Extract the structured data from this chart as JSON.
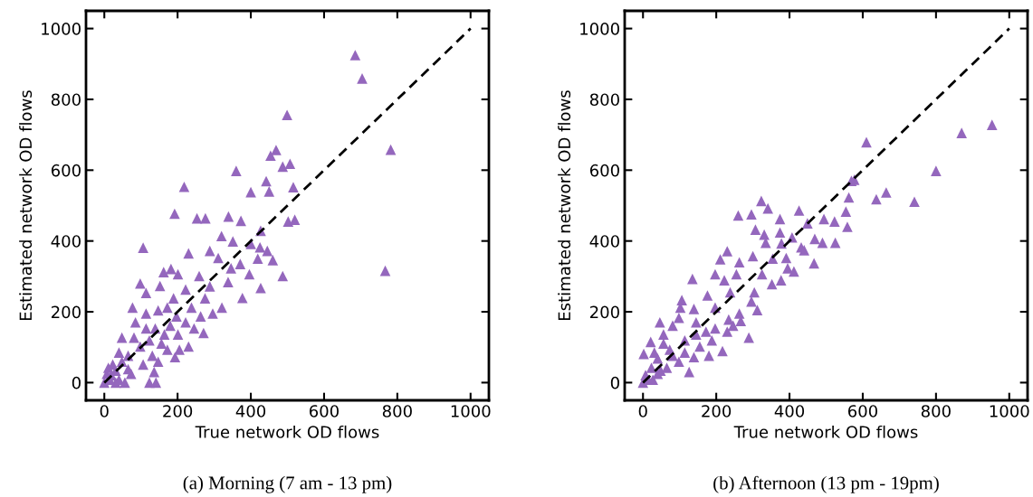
{
  "chart_data": [
    {
      "type": "scatter",
      "xlabel": "True network OD flows",
      "ylabel": "Estimated network OD flows",
      "annotations": [
        "(a) Morning (7 am - 13 pm)"
      ],
      "xlim": [
        -50,
        1050
      ],
      "ylim": [
        -50,
        1050
      ],
      "xticks": [
        0,
        200,
        400,
        600,
        800,
        1000
      ],
      "yticks": [
        0,
        200,
        400,
        600,
        800,
        1000
      ],
      "grid": false,
      "marker": "triangle",
      "series": [
        {
          "color": "#9467bd",
          "x": [
            685,
            704,
            782,
            767,
            499,
            469,
            454,
            507,
            487,
            360,
            218,
            442,
            516,
            400,
            450,
            192,
            253,
            276,
            339,
            373,
            502,
            520,
            427,
            320,
            106,
            351,
            400,
            230,
            288,
            425,
            445,
            460,
            419,
            311,
            371,
            487,
            427,
            396,
            346,
            162,
            182,
            201,
            259,
            98,
            152,
            222,
            288,
            338,
            377,
            321,
            114,
            77,
            189,
            263,
            230,
            193,
            271,
            136,
            141,
            123,
            56,
            31,
            48,
            85,
            114,
            147,
            164,
            197,
            222,
            245,
            172,
            131,
            98,
            65,
            40,
            23,
            7,
            15,
            0,
            31,
            73,
            106,
            147,
            205,
            156,
            48,
            81,
            123,
            238,
            296,
            275,
            172,
            201,
            180,
            114,
            139,
            19,
            40,
            11,
            65
          ],
          "values": [
            925,
            859,
            658,
            316,
            756,
            657,
            641,
            618,
            610,
            598,
            553,
            569,
            552,
            538,
            540,
            477,
            464,
            464,
            469,
            457,
            455,
            460,
            429,
            414,
            381,
            399,
            392,
            365,
            372,
            382,
            372,
            346,
            350,
            352,
            335,
            301,
            267,
            306,
            323,
            312,
            321,
            306,
            301,
            280,
            273,
            263,
            272,
            284,
            239,
            212,
            253,
            212,
            238,
            187,
            102,
            72,
            140,
            30,
            0,
            0,
            0,
            0,
            127,
            170,
            153,
            204,
            136,
            187,
            170,
            153,
            93,
            76,
            102,
            76,
            85,
            51,
            25,
            8,
            0,
            34,
            25,
            51,
            59,
            93,
            110,
            59,
            127,
            119,
            212,
            195,
            238,
            212,
            136,
            161,
            195,
            153,
            21,
            8,
            42,
            38
          ]
        },
        {
          "type": "line",
          "color": "#000000",
          "line_style": "dashed",
          "marker": "none",
          "x": [
            0,
            1000
          ],
          "values": [
            0,
            1000
          ]
        }
      ]
    },
    {
      "type": "scatter",
      "xlabel": "True network OD flows",
      "ylabel": "Estimated network OD flows",
      "annotations": [
        "(b) Afternoon (13 pm - 19pm)"
      ],
      "xlim": [
        -50,
        1050
      ],
      "ylim": [
        -50,
        1050
      ],
      "xticks": [
        0,
        200,
        400,
        600,
        800,
        1000
      ],
      "yticks": [
        0,
        200,
        400,
        600,
        800,
        1000
      ],
      "grid": false,
      "marker": "triangle",
      "series": [
        {
          "color": "#9467bd",
          "x": [
            953,
            870,
            610,
            800,
            569,
            577,
            562,
            637,
            664,
            741,
            323,
            341,
            260,
            296,
            426,
            374,
            494,
            554,
            523,
            558,
            449,
            307,
            331,
            374,
            407,
            469,
            490,
            525,
            335,
            378,
            432,
            440,
            467,
            230,
            211,
            263,
            300,
            354,
            391,
            395,
            412,
            135,
            197,
            222,
            255,
            325,
            352,
            377,
            304,
            106,
            176,
            238,
            296,
            102,
            139,
            197,
            312,
            263,
            46,
            81,
            98,
            145,
            234,
            267,
            172,
            230,
            289,
            56,
            21,
            2,
            56,
            114,
            145,
            188,
            217,
            180,
            139,
            126,
            81,
            40,
            23,
            7,
            0,
            15,
            40,
            65,
            98,
            73,
            114,
            155,
            197,
            246,
            31,
            27,
            48
          ],
          "values": [
            728,
            705,
            679,
            598,
            570,
            573,
            523,
            518,
            537,
            511,
            513,
            492,
            472,
            475,
            486,
            462,
            462,
            483,
            455,
            440,
            450,
            432,
            418,
            424,
            410,
            406,
            395,
            395,
            395,
            393,
            382,
            374,
            337,
            371,
            348,
            340,
            357,
            350,
            352,
            323,
            314,
            293,
            306,
            289,
            306,
            306,
            278,
            289,
            255,
            233,
            246,
            255,
            229,
            212,
            208,
            212,
            205,
            195,
            170,
            161,
            183,
            170,
            178,
            174,
            144,
            144,
            127,
            136,
            115,
            81,
            110,
            119,
            136,
            119,
            89,
            76,
            72,
            30,
            76,
            68,
            42,
            21,
            0,
            8,
            25,
            42,
            59,
            93,
            85,
            102,
            153,
            161,
            85,
            8,
            34
          ]
        },
        {
          "type": "line",
          "color": "#000000",
          "line_style": "dashed",
          "marker": "none",
          "x": [
            0,
            1000
          ],
          "values": [
            0,
            1000
          ]
        }
      ]
    }
  ]
}
